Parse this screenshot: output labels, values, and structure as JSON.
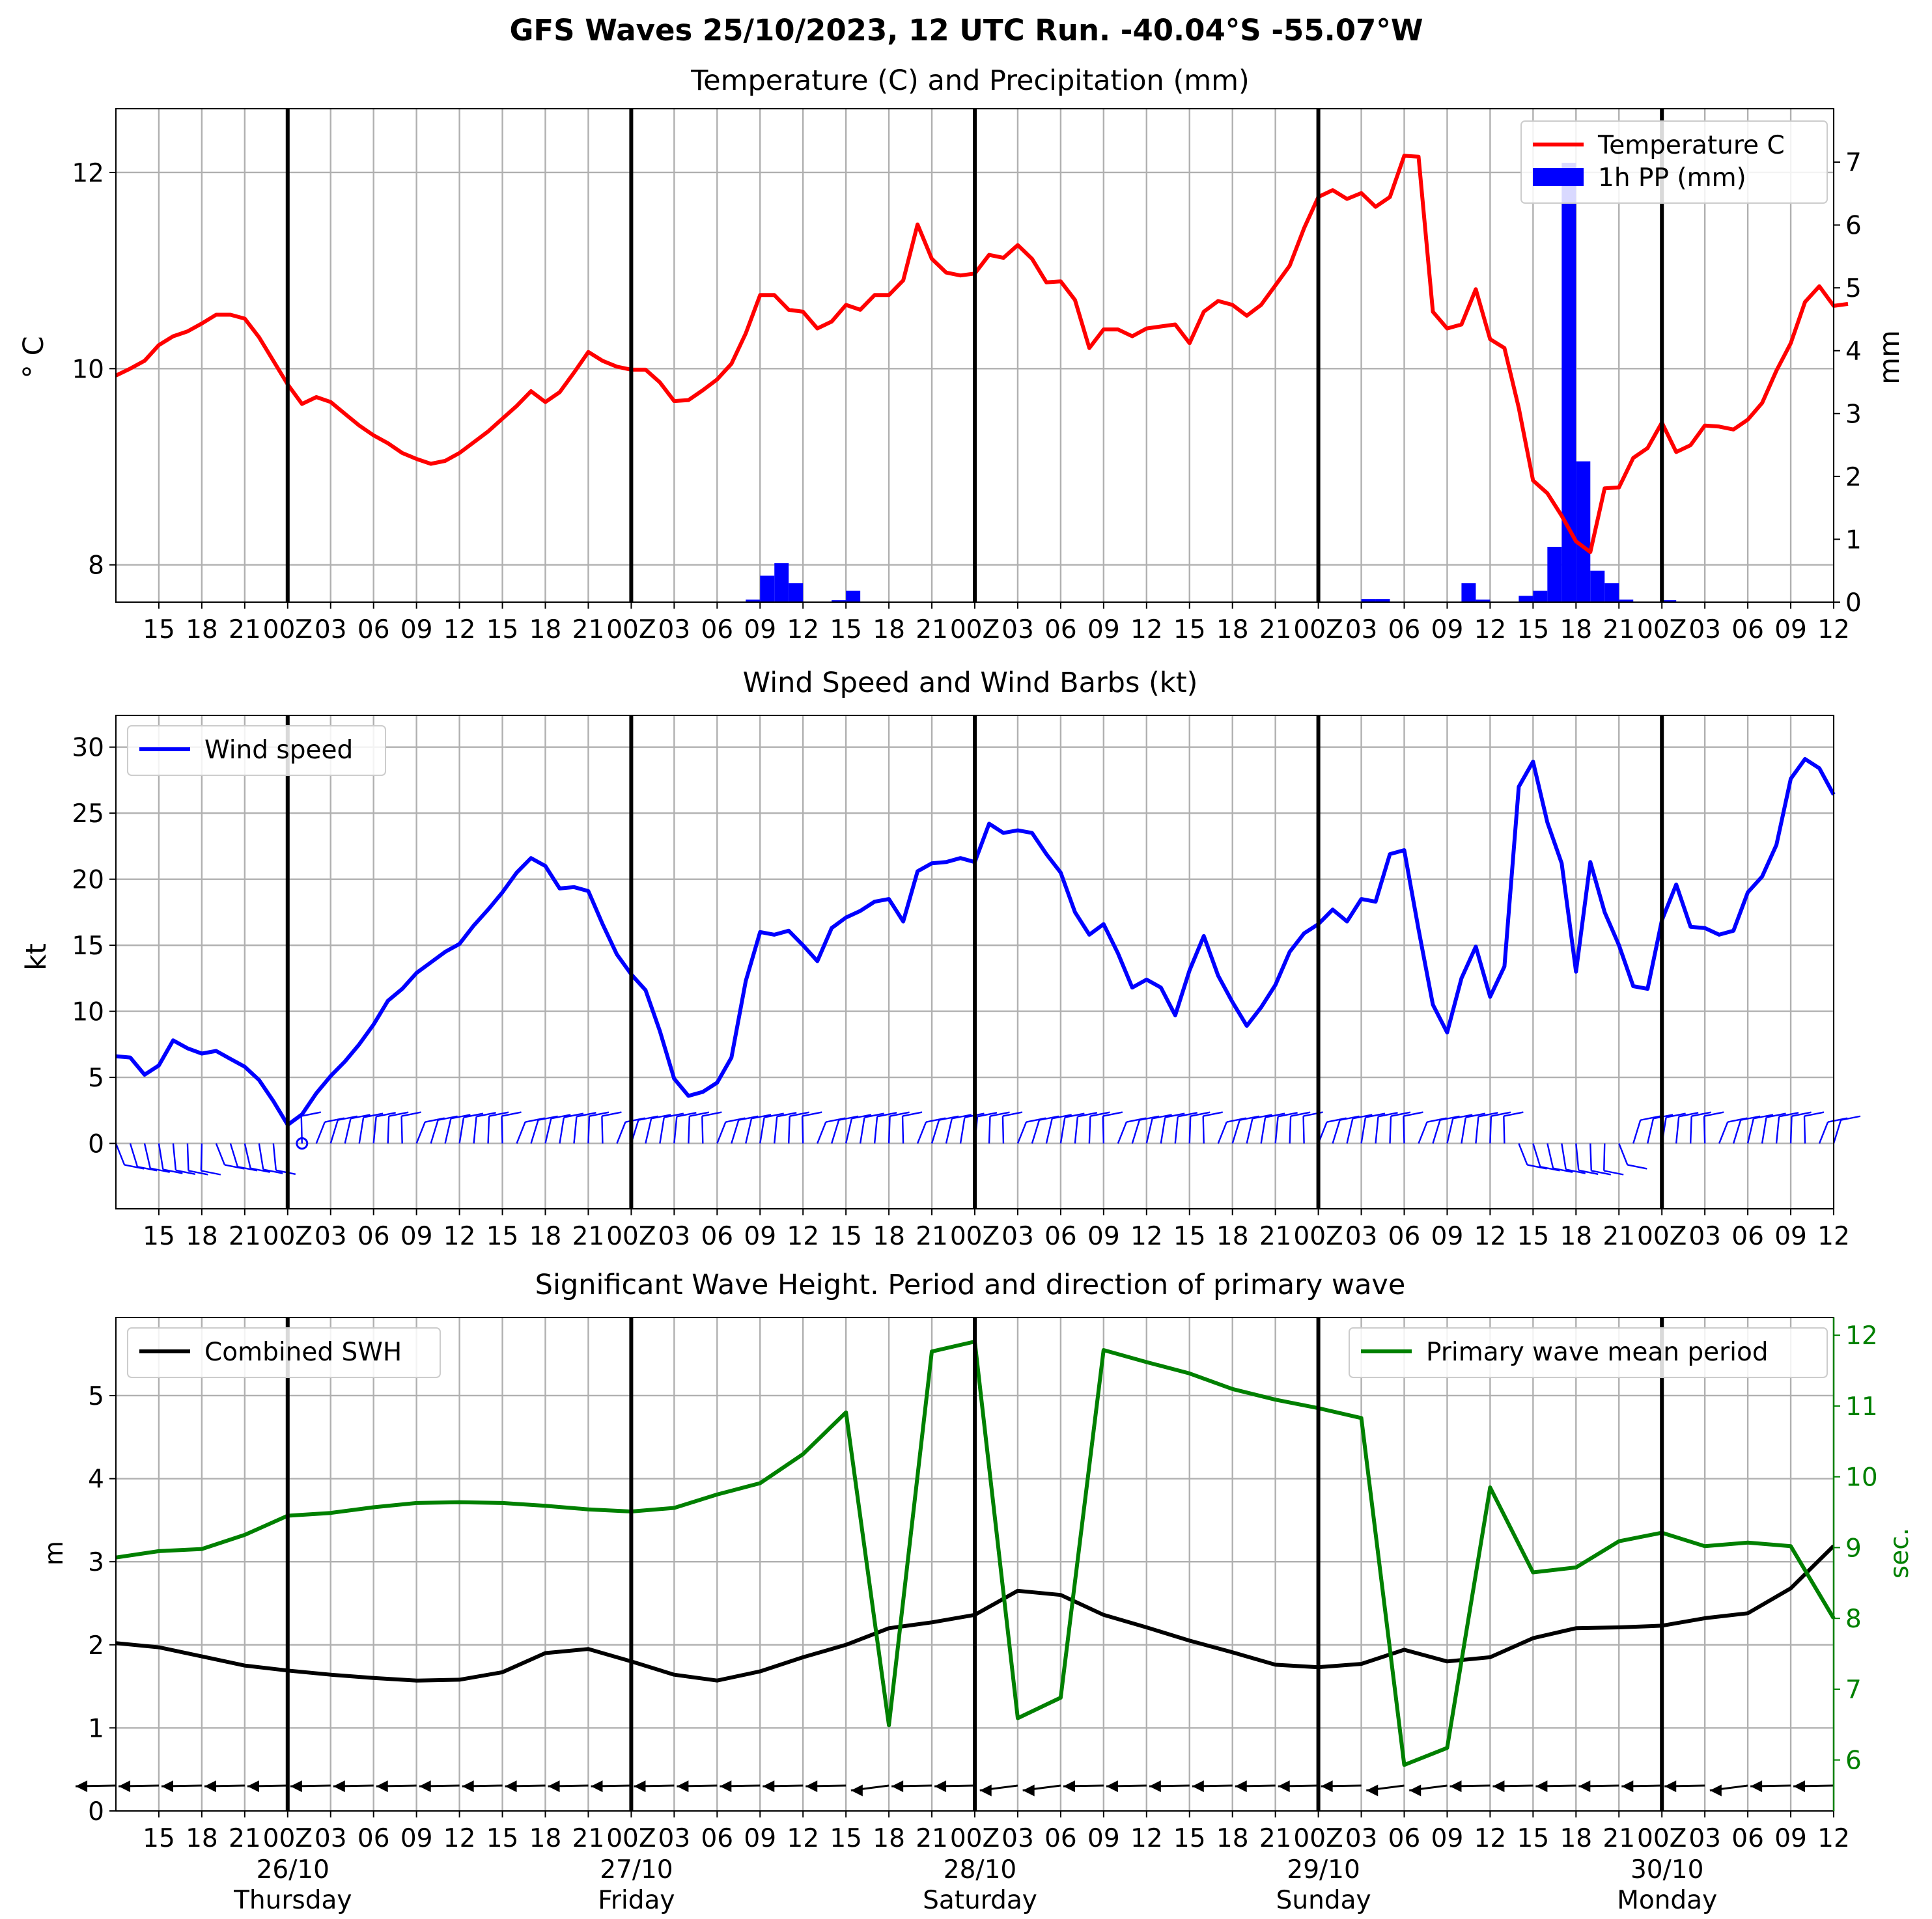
{
  "suptitle": "GFS Waves 25/10/2023, 12 UTC Run. -40.04°S -55.07°W",
  "time_axis": {
    "start_hour_label": "12",
    "step_hours": 3,
    "ticks": [
      "15",
      "18",
      "21",
      "00Z",
      "03",
      "06",
      "09",
      "12",
      "15",
      "18",
      "21",
      "00Z",
      "03",
      "06",
      "09",
      "12",
      "15",
      "18",
      "21",
      "00Z",
      "03",
      "06",
      "09",
      "12",
      "15",
      "18",
      "21",
      "00Z",
      "03",
      "06",
      "09",
      "12",
      "15",
      "18",
      "21",
      "00Z",
      "03",
      "06",
      "09",
      "12"
    ],
    "day_markers": [
      {
        "tick": "00Z",
        "date": "26/10",
        "day": "Thursday"
      },
      {
        "tick": "00Z",
        "date": "27/10",
        "day": "Friday"
      },
      {
        "tick": "00Z",
        "date": "28/10",
        "day": "Saturday"
      },
      {
        "tick": "00Z",
        "date": "29/10",
        "day": "Sunday"
      },
      {
        "tick": "00Z",
        "date": "30/10",
        "day": "Monday"
      }
    ]
  },
  "chart_data": [
    {
      "type": "line",
      "title": "Temperature (C) and Precipitation (mm)",
      "ylabel": "° C",
      "ylabel_right": "mm",
      "ylim": [
        7.62,
        12.65
      ],
      "ylim_right": [
        0,
        7.85
      ],
      "yticks": [
        "8",
        "10",
        "12"
      ],
      "yticks_right": [
        "0",
        "1",
        "2",
        "3",
        "4",
        "5",
        "6",
        "7"
      ],
      "grid": true,
      "legend_position": "top-right",
      "series": [
        {
          "name": "Temperature C",
          "color": "#ff0000",
          "hour_step": 1,
          "values": [
            9.93,
            10.0,
            10.08,
            10.24,
            10.33,
            10.38,
            10.46,
            10.55,
            10.55,
            10.51,
            10.32,
            10.08,
            9.84,
            9.64,
            9.71,
            9.66,
            9.54,
            9.42,
            9.32,
            9.24,
            9.14,
            9.08,
            9.03,
            9.06,
            9.14,
            9.25,
            9.36,
            9.49,
            9.62,
            9.77,
            9.66,
            9.76,
            9.96,
            10.17,
            10.08,
            10.02,
            9.99,
            9.99,
            9.86,
            9.67,
            9.68,
            9.78,
            9.89,
            10.05,
            10.36,
            10.75,
            10.75,
            10.6,
            10.58,
            10.41,
            10.48,
            10.65,
            10.6,
            10.75,
            10.75,
            10.9,
            11.47,
            11.12,
            10.98,
            10.95,
            10.97,
            11.16,
            11.13,
            11.26,
            11.12,
            10.88,
            10.89,
            10.7,
            10.21,
            10.4,
            10.4,
            10.33,
            10.41,
            10.43,
            10.45,
            10.26,
            10.58,
            10.69,
            10.65,
            10.54,
            10.65,
            10.85,
            11.05,
            11.43,
            11.75,
            11.82,
            11.73,
            11.79,
            11.65,
            11.75,
            12.17,
            12.16,
            10.58,
            10.41,
            10.45,
            10.81,
            10.3,
            10.21,
            9.6,
            8.86,
            8.73,
            8.5,
            8.24,
            8.13,
            8.78,
            8.79,
            9.09,
            9.19,
            9.45,
            9.15,
            9.22,
            9.42,
            9.41,
            9.38,
            9.48,
            9.65,
            9.98,
            10.26,
            10.68,
            10.84,
            10.64,
            10.66
          ]
        },
        {
          "name": "1h PP (mm)",
          "color": "#0000ff",
          "type": "bar",
          "hour_step": 1,
          "values": [
            0,
            0,
            0,
            0,
            0,
            0,
            0,
            0,
            0,
            0,
            0,
            0,
            0,
            0,
            0,
            0,
            0,
            0,
            0,
            0,
            0,
            0,
            0,
            0,
            0,
            0,
            0,
            0,
            0,
            0,
            0,
            0,
            0,
            0,
            0,
            0,
            0,
            0,
            0,
            0,
            0,
            0,
            0,
            0,
            0.04,
            0.42,
            0.62,
            0.3,
            0,
            0,
            0.03,
            0.18,
            0,
            0,
            0,
            0,
            0,
            0,
            0,
            0,
            0,
            0,
            0,
            0,
            0,
            0,
            0,
            0,
            0,
            0,
            0,
            0,
            0,
            0,
            0,
            0,
            0,
            0,
            0,
            0,
            0,
            0,
            0,
            0,
            0,
            0,
            0,
            0.05,
            0.05,
            0,
            0,
            0,
            0,
            0,
            0.3,
            0.04,
            0,
            0,
            0.1,
            0.18,
            0.88,
            6.99,
            2.24,
            0.5,
            0.3,
            0.04,
            0,
            0,
            0.03,
            0,
            0,
            0,
            0,
            0,
            0,
            0,
            0,
            0,
            0,
            0,
            0,
            0,
            0,
            0,
            0,
            0
          ]
        }
      ]
    },
    {
      "type": "line",
      "title": "Wind Speed and Wind Barbs (kt)",
      "ylabel": "kt",
      "ylim": [
        -4.95,
        32.4
      ],
      "yticks": [
        "0",
        "5",
        "10",
        "15",
        "20",
        "25",
        "30"
      ],
      "grid": true,
      "legend_position": "top-left",
      "series": [
        {
          "name": "Wind speed",
          "color": "#0000ff",
          "hour_step": 1,
          "values": [
            6.6,
            6.5,
            5.2,
            5.9,
            7.8,
            7.2,
            6.8,
            7.0,
            6.4,
            5.8,
            4.8,
            3.2,
            1.4,
            2.2,
            3.8,
            5.1,
            6.2,
            7.5,
            9.0,
            10.8,
            11.7,
            12.9,
            13.7,
            14.5,
            15.1,
            16.5,
            17.7,
            19.0,
            20.5,
            21.6,
            21.0,
            19.3,
            19.4,
            19.1,
            16.6,
            14.3,
            12.8,
            11.6,
            8.5,
            4.9,
            3.6,
            3.9,
            4.6,
            6.5,
            12.3,
            16.0,
            15.8,
            16.1,
            15.0,
            13.8,
            16.3,
            17.1,
            17.6,
            18.3,
            18.5,
            16.8,
            20.6,
            21.2,
            21.3,
            21.6,
            21.3,
            24.2,
            23.5,
            23.7,
            23.5,
            21.9,
            20.5,
            17.5,
            15.8,
            16.6,
            14.4,
            11.8,
            12.4,
            11.8,
            9.7,
            13.1,
            15.7,
            12.7,
            10.7,
            8.9,
            10.3,
            12.0,
            14.5,
            15.9,
            16.6,
            17.7,
            16.8,
            18.5,
            18.3,
            21.9,
            22.2,
            16.2,
            10.5,
            8.4,
            12.5,
            14.9,
            11.1,
            13.4,
            27.0,
            28.9,
            24.3,
            21.2,
            13.0,
            21.3,
            17.5,
            15.0,
            11.9,
            11.7,
            16.9,
            19.6,
            16.4,
            16.3,
            15.8,
            16.1,
            19.0,
            20.2,
            22.6,
            27.6,
            29.1,
            28.4,
            26.4
          ]
        }
      ]
    },
    {
      "type": "line",
      "title": "Significant Wave Height. Period and direction of primary wave",
      "ylabel": "m",
      "ylabel_right": "sec.",
      "ylim": [
        0,
        5.94
      ],
      "ylim_right": [
        5.28,
        12.25
      ],
      "yticks": [
        "0",
        "1",
        "2",
        "3",
        "4",
        "5"
      ],
      "yticks_right": [
        "6",
        "7",
        "8",
        "9",
        "10",
        "11",
        "12"
      ],
      "grid": true,
      "series": [
        {
          "name": "Combined SWH",
          "color": "#000000",
          "hour_step": 3,
          "legend_position": "top-left",
          "values": [
            2.02,
            1.97,
            1.86,
            1.75,
            1.69,
            1.64,
            1.6,
            1.57,
            1.58,
            1.67,
            1.9,
            1.95,
            1.8,
            1.64,
            1.57,
            1.68,
            1.85,
            2.0,
            2.2,
            2.27,
            2.36,
            2.65,
            2.6,
            2.36,
            2.21,
            2.05,
            1.91,
            1.76,
            1.73,
            1.77,
            1.94,
            1.8,
            1.85,
            2.08,
            2.2,
            2.21,
            2.23,
            2.32,
            2.38,
            2.68,
            3.19
          ]
        },
        {
          "name": "Primary wave mean period",
          "color": "#008000",
          "axis": "right",
          "hour_step": 3,
          "legend_position": "top-right",
          "values": [
            8.86,
            8.95,
            8.98,
            9.18,
            9.45,
            9.49,
            9.57,
            9.63,
            9.64,
            9.63,
            9.59,
            9.54,
            9.51,
            9.56,
            9.75,
            9.91,
            10.32,
            10.91,
            6.49,
            11.77,
            11.91,
            6.59,
            6.88,
            11.79,
            11.62,
            11.46,
            11.24,
            11.09,
            10.97,
            10.83,
            5.93,
            6.17,
            9.85,
            8.65,
            8.72,
            9.09,
            9.21,
            9.02,
            9.07,
            9.02,
            8.0
          ]
        }
      ]
    }
  ]
}
